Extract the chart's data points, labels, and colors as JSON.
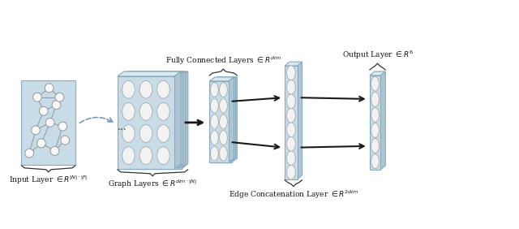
{
  "bg_color": "#ffffff",
  "panel_fill": "#aec6d4",
  "panel_side": "#8aaabb",
  "panel_face": "#c8dce8",
  "panel_top": "#d8e8f0",
  "circle_fill": "#f2f2f2",
  "circle_edge": "#aaaaaa",
  "brace_color": "#333333",
  "text_color": "#111111",
  "arrow_color": "#1a1a1a",
  "curved_arrow_color": "#7799bb",
  "node_edge_color": "#8899aa",
  "node_fill": "#f8f8f8",
  "labels": {
    "input": "Input Layer $\\in R^{|N|\\cdot|F|}$",
    "graph": "Graph Layers $\\in R^{dim\\cdot|N|}$",
    "fc": "Fully Connected Layers $\\in R^{dim}$",
    "edge": "Edge Concatenation Layer $\\in R^{2dim}$",
    "output": "Output Layer $\\in R^{6}$"
  },
  "figsize": [
    6.4,
    2.82
  ],
  "dpi": 100
}
